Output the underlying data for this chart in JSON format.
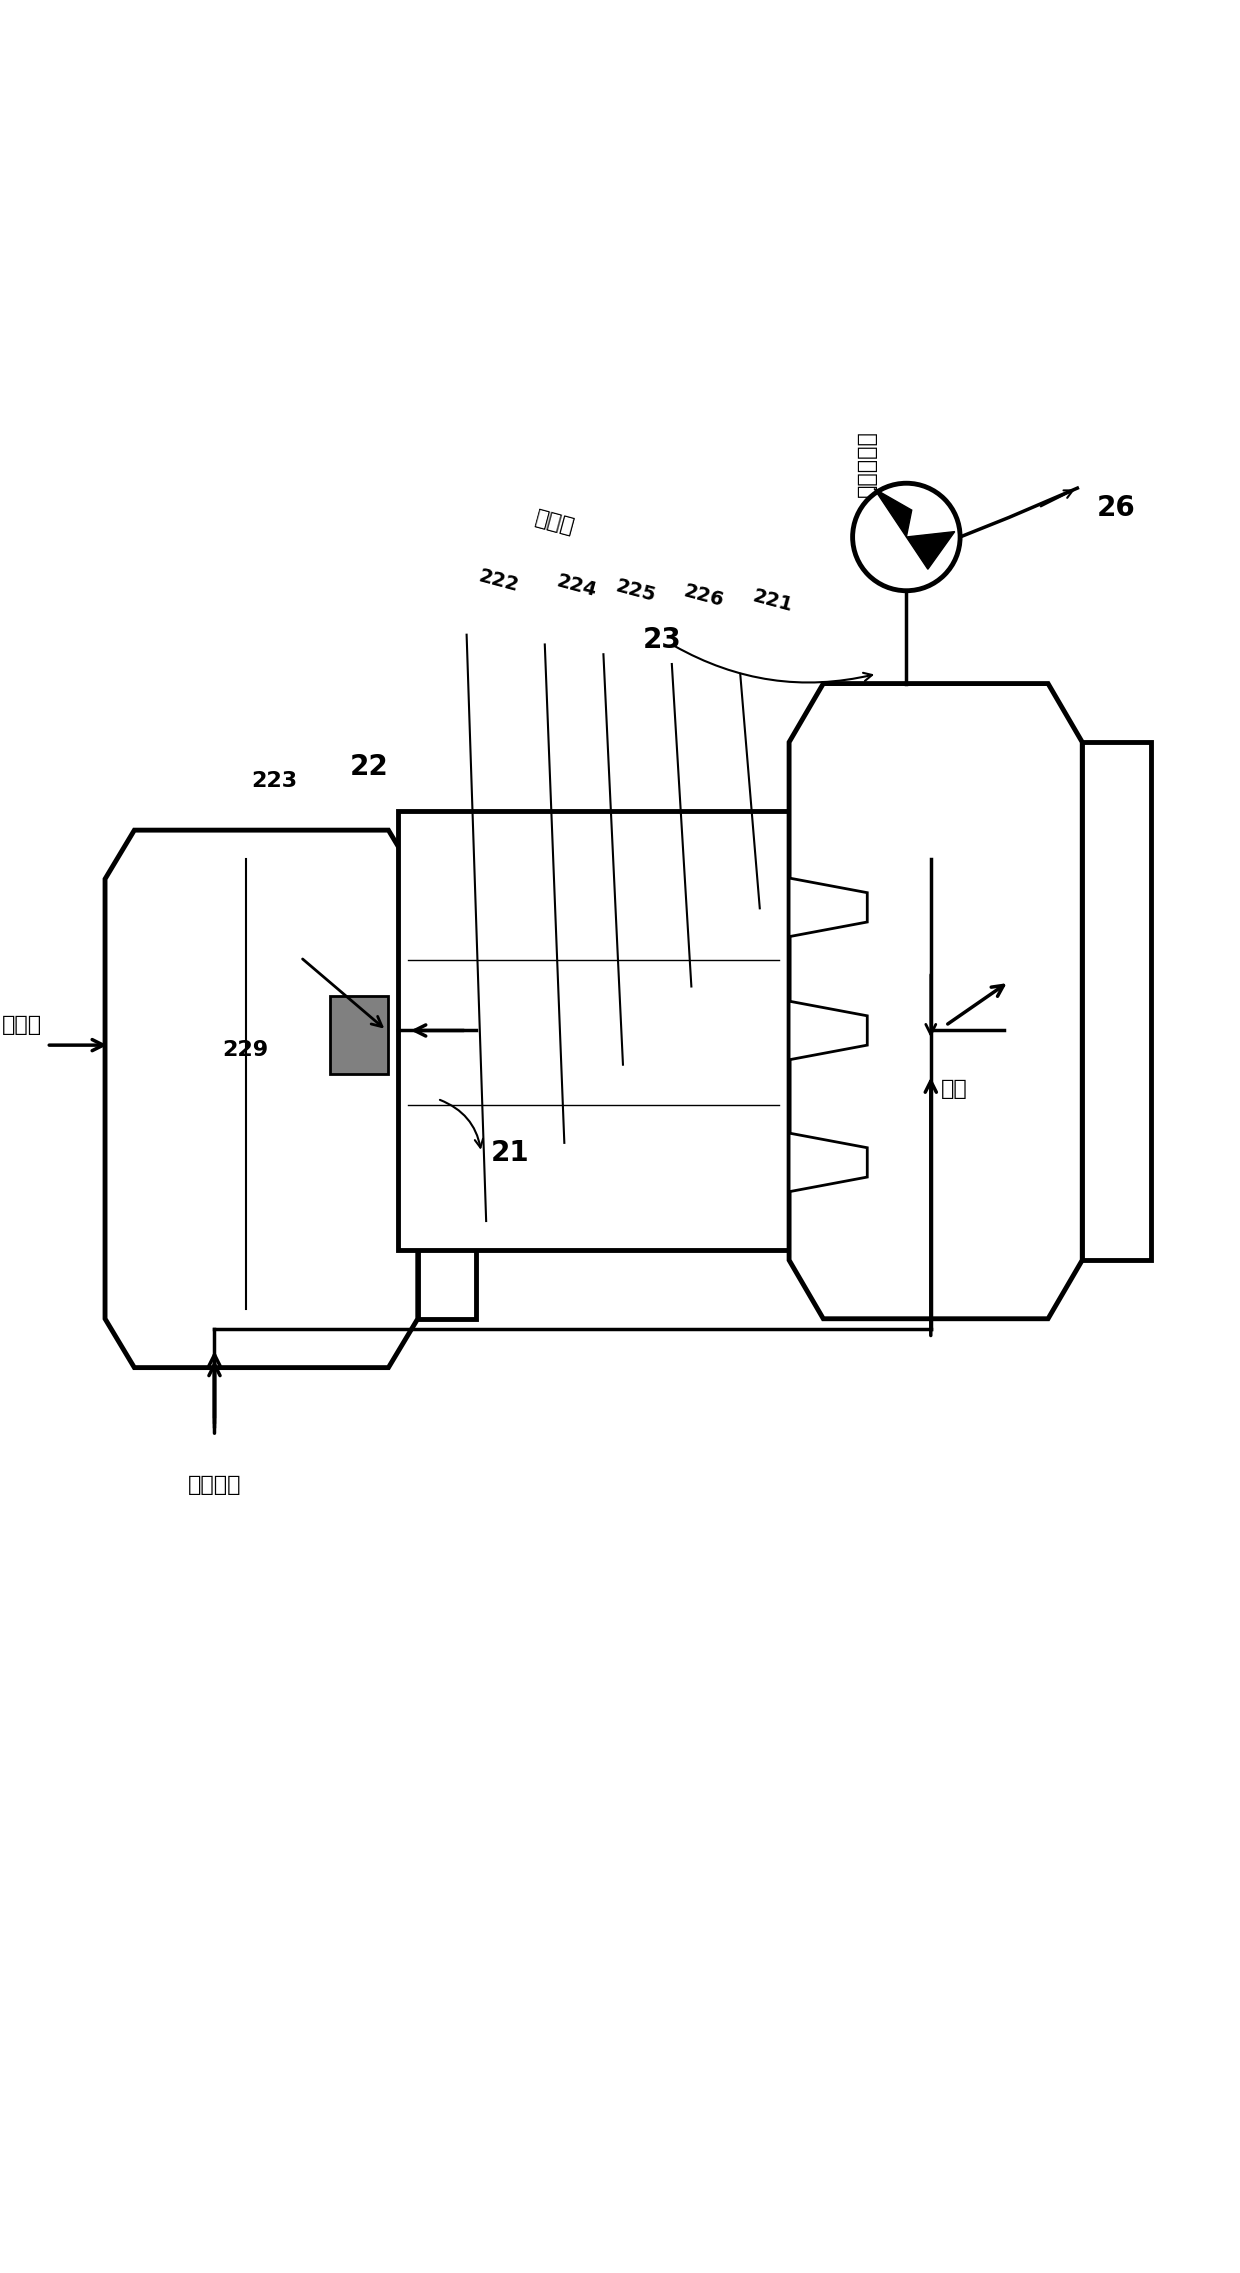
{
  "bg_color": "#ffffff",
  "line_color": "#000000",
  "fig_width": 12.4,
  "fig_height": 22.73,
  "labels": {
    "exhaust_gas": "排出气体",
    "wash_water": "洗涤水",
    "air": "空气",
    "reductant": "还原剂",
    "exhaust_atm": "排出至大气",
    "unit21": "21",
    "unit22": "22",
    "unit23": "23",
    "unit26": "26",
    "unit221": "221",
    "unit222": "222",
    "unit223": "223",
    "unit224": "224",
    "unit225": "225",
    "unit226": "226",
    "unit229": "229"
  }
}
